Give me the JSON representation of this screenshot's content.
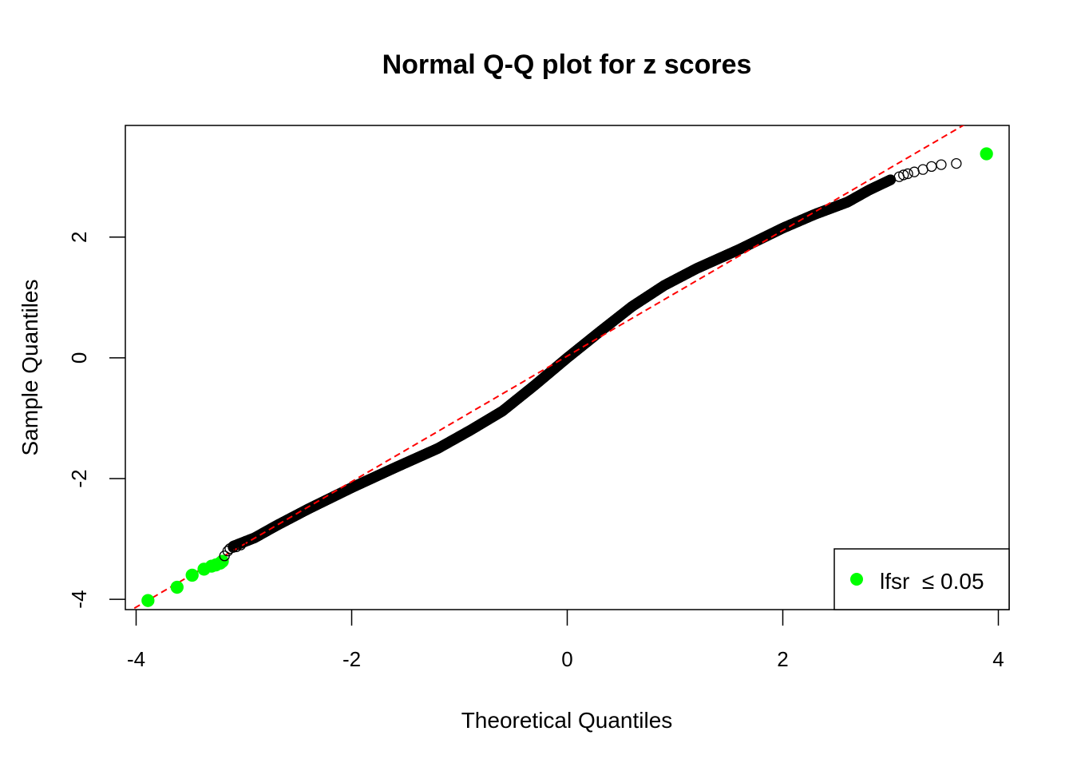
{
  "chart_data": {
    "type": "scatter",
    "title": "Normal Q-Q plot for z scores",
    "xlabel": "Theoretical Quantiles",
    "ylabel": "Sample Quantiles",
    "xlim": [
      -4.1,
      4.1
    ],
    "ylim": [
      -4.17,
      3.85
    ],
    "x_ticks": [
      -4,
      -2,
      0,
      2,
      4
    ],
    "x_tick_labels": [
      "-4",
      "-2",
      "0",
      "2",
      "4"
    ],
    "y_ticks": [
      -4,
      -2,
      0,
      2
    ],
    "y_tick_labels": [
      "-4",
      "-2",
      "0",
      "2"
    ],
    "grid": false,
    "legend_position": "bottom-right",
    "legend": [
      {
        "label": "lfsr  ≤ 0.05",
        "color": "#00ff00",
        "marker": "filled-circle"
      }
    ],
    "reference_line": {
      "intercept": 0.03,
      "slope": 1.04,
      "color": "#ff0000",
      "style": "dashed"
    },
    "curve": {
      "x": [
        -3.1,
        -2.9,
        -2.7,
        -2.4,
        -2.0,
        -1.6,
        -1.2,
        -0.9,
        -0.6,
        -0.3,
        0.0,
        0.3,
        0.6,
        0.9,
        1.2,
        1.6,
        2.0,
        2.3,
        2.6,
        2.8,
        3.0
      ],
      "y": [
        -3.12,
        -2.98,
        -2.78,
        -2.5,
        -2.15,
        -1.82,
        -1.5,
        -1.2,
        -0.88,
        -0.45,
        0.0,
        0.43,
        0.85,
        1.2,
        1.48,
        1.8,
        2.15,
        2.38,
        2.58,
        2.78,
        2.95
      ]
    },
    "series": [
      {
        "name": "lfsr  ≤ 0.05",
        "color": "#00ff00",
        "filled": true,
        "x": [
          -3.89,
          -3.62,
          -3.48,
          -3.37,
          -3.3,
          -3.26,
          -3.22,
          -3.2,
          3.89
        ],
        "y": [
          -4.02,
          -3.8,
          -3.6,
          -3.5,
          -3.45,
          -3.43,
          -3.4,
          -3.37,
          3.38
        ]
      },
      {
        "color": "#000000",
        "filled": false,
        "x": [
          -3.18,
          -3.15,
          -3.13,
          -3.1,
          -3.07,
          -3.03,
          3.08,
          3.12,
          3.16,
          3.22,
          3.3,
          3.38,
          3.47,
          3.61
        ],
        "y": [
          -3.28,
          -3.2,
          -3.16,
          -3.14,
          -3.13,
          -3.1,
          3.0,
          3.03,
          3.05,
          3.08,
          3.12,
          3.17,
          3.2,
          3.22
        ]
      }
    ]
  }
}
